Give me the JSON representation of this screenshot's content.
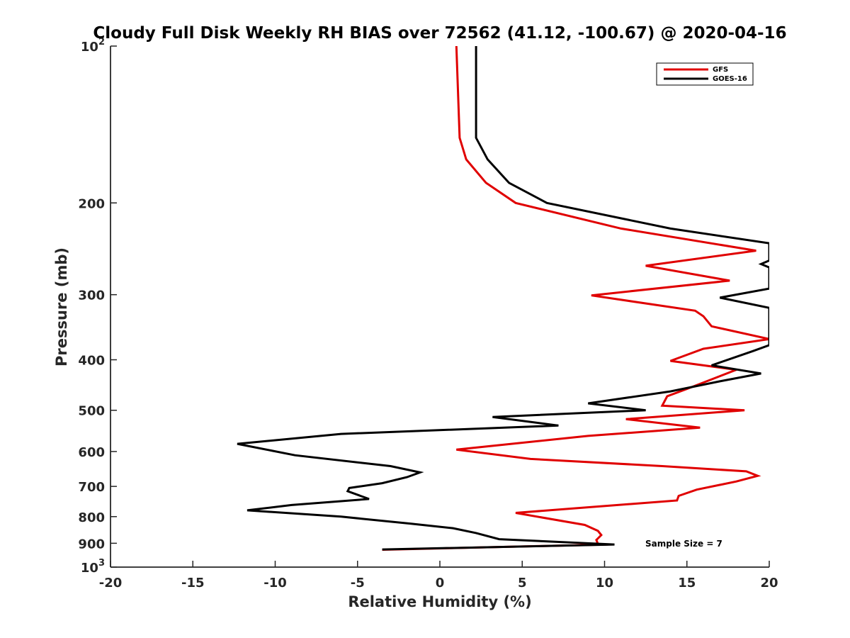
{
  "chart_data": {
    "type": "line",
    "title": "Cloudy Full Disk Weekly RH BIAS over 72562 (41.12, -100.67) @ 2020-04-16",
    "xlabel": "Relative Humidity (%)",
    "ylabel": "Pressure (mb)",
    "xlim": [
      -20,
      20
    ],
    "ylim": [
      100,
      1000
    ],
    "y_scale": "log",
    "y_reversed": true,
    "grid": false,
    "legend_position": "top-right",
    "x_ticks": [
      "-20",
      "-15",
      "-10",
      "-5",
      "0",
      "5",
      "10",
      "15",
      "20"
    ],
    "y_ticks": [
      {
        "base": "10",
        "exp": "2"
      },
      {
        "base": "200",
        "exp": ""
      },
      {
        "base": "300",
        "exp": ""
      },
      {
        "base": "400",
        "exp": ""
      },
      {
        "base": "500",
        "exp": ""
      },
      {
        "base": "600",
        "exp": ""
      },
      {
        "base": "700",
        "exp": ""
      },
      {
        "base": "800",
        "exp": ""
      },
      {
        "base": "900",
        "exp": ""
      },
      {
        "base": "10",
        "exp": "3"
      }
    ],
    "annotation": "Sample Size = 7",
    "series": [
      {
        "name": "GFS",
        "color": "#e00000",
        "points": [
          [
            1.0,
            100
          ],
          [
            1.2,
            150
          ],
          [
            1.6,
            165
          ],
          [
            2.8,
            183
          ],
          [
            4.6,
            200
          ],
          [
            11.0,
            224
          ],
          [
            19.2,
            247
          ],
          [
            12.5,
            264
          ],
          [
            17.6,
            282
          ],
          [
            9.2,
            301
          ],
          [
            15.5,
            322
          ],
          [
            16.0,
            330
          ],
          [
            16.5,
            345
          ],
          [
            20.0,
            365
          ],
          [
            16.0,
            381
          ],
          [
            14.0,
            402
          ],
          [
            18.0,
            418
          ],
          [
            17.0,
            430
          ],
          [
            15.0,
            455
          ],
          [
            13.8,
            470
          ],
          [
            13.5,
            490
          ],
          [
            18.5,
            500
          ],
          [
            11.3,
            520
          ],
          [
            15.8,
            540
          ],
          [
            9.0,
            560
          ],
          [
            1.0,
            595
          ],
          [
            5.5,
            620
          ],
          [
            13.5,
            640
          ],
          [
            18.6,
            655
          ],
          [
            19.3,
            668
          ],
          [
            18.0,
            685
          ],
          [
            15.6,
            710
          ],
          [
            14.5,
            730
          ],
          [
            14.4,
            745
          ],
          [
            4.6,
            787
          ],
          [
            8.8,
            830
          ],
          [
            9.6,
            852
          ],
          [
            9.8,
            868
          ],
          [
            9.5,
            887
          ],
          [
            9.6,
            903
          ],
          [
            10.2,
            905
          ],
          [
            -3.5,
            926
          ]
        ]
      },
      {
        "name": "GOES-16",
        "color": "#000000",
        "points": [
          [
            2.2,
            100
          ],
          [
            2.2,
            150
          ],
          [
            2.9,
            165
          ],
          [
            4.2,
            183
          ],
          [
            6.5,
            200
          ],
          [
            14.0,
            224
          ],
          [
            20.0,
            239
          ],
          [
            20.0,
            258
          ],
          [
            19.5,
            262
          ],
          [
            20.0,
            266
          ],
          [
            20.0,
            292
          ],
          [
            17.0,
            304
          ],
          [
            20.0,
            318
          ],
          [
            20.0,
            375
          ],
          [
            19.0,
            385
          ],
          [
            16.5,
            410
          ],
          [
            19.5,
            425
          ],
          [
            17.0,
            440
          ],
          [
            14.0,
            460
          ],
          [
            9.0,
            485
          ],
          [
            12.5,
            500
          ],
          [
            3.2,
            515
          ],
          [
            7.2,
            535
          ],
          [
            -6.0,
            555
          ],
          [
            -12.3,
            580
          ],
          [
            -8.8,
            610
          ],
          [
            -3.0,
            640
          ],
          [
            -1.2,
            658
          ],
          [
            -2.0,
            672
          ],
          [
            -3.5,
            690
          ],
          [
            -5.5,
            705
          ],
          [
            -5.6,
            715
          ],
          [
            -4.3,
            740
          ],
          [
            -9.0,
            760
          ],
          [
            -11.7,
            778
          ],
          [
            -6.0,
            800
          ],
          [
            -1.8,
            825
          ],
          [
            0.8,
            842
          ],
          [
            2.2,
            860
          ],
          [
            3.6,
            884
          ],
          [
            10.6,
            905
          ],
          [
            -3.5,
            925
          ]
        ]
      }
    ]
  }
}
